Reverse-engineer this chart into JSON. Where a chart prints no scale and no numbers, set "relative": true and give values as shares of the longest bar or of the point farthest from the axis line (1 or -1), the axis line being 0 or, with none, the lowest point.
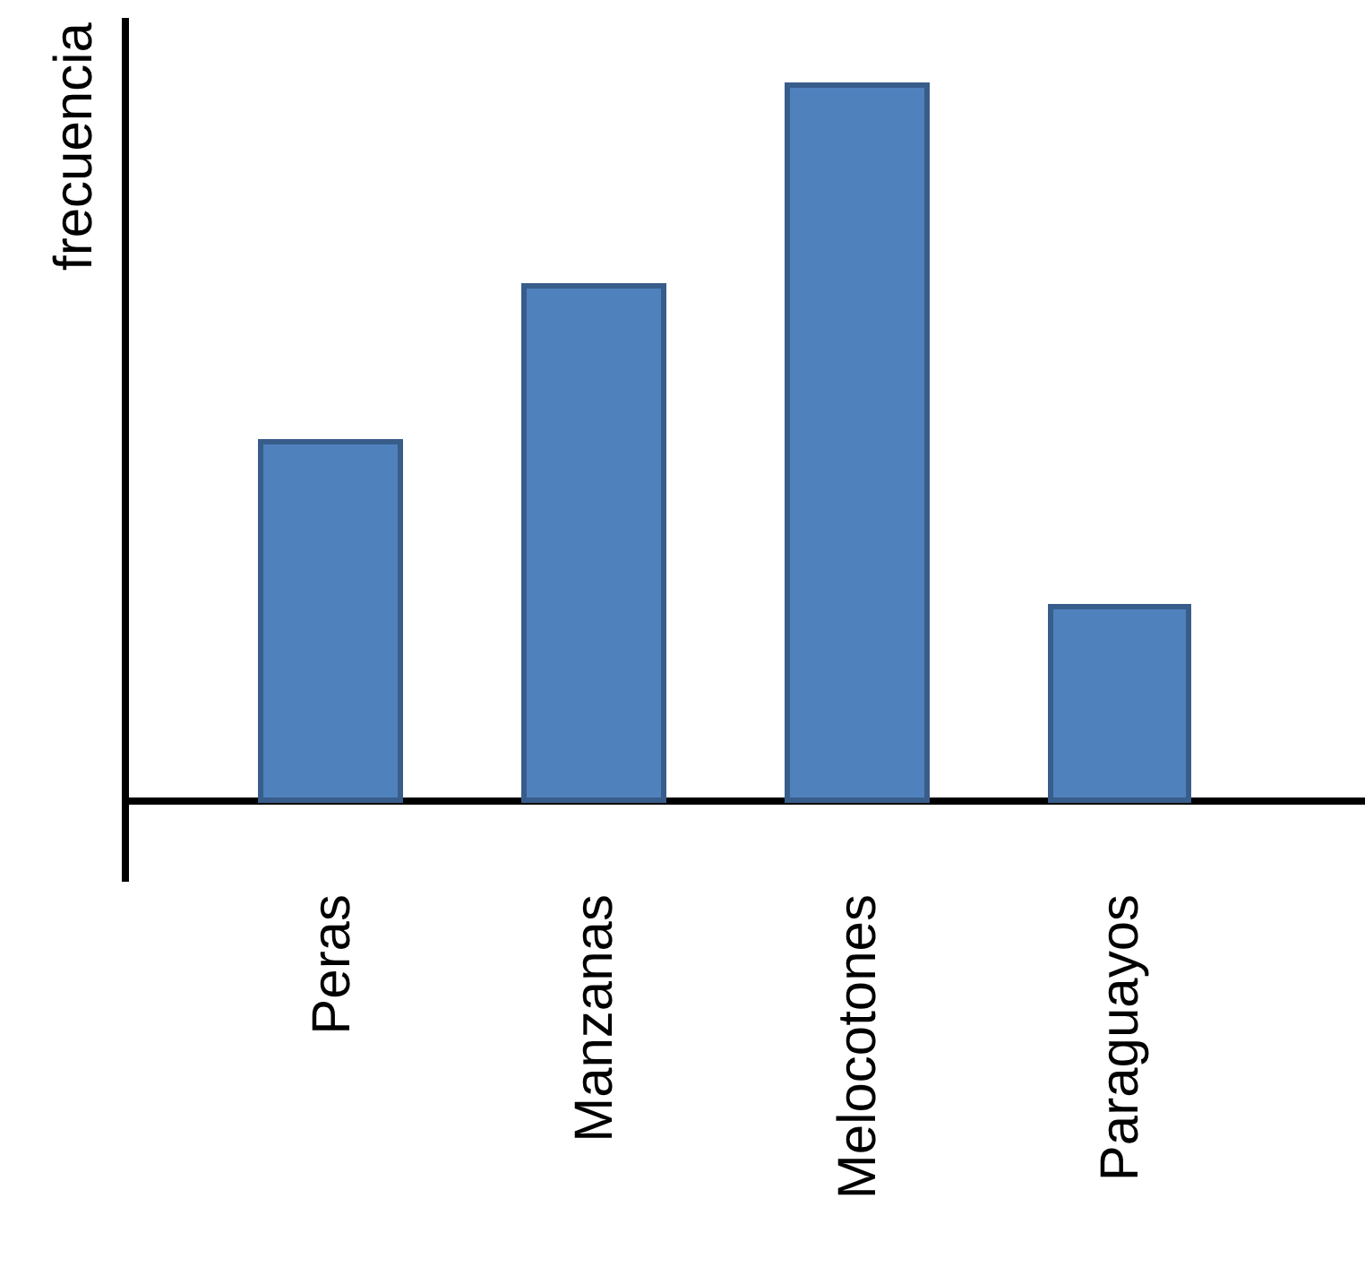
{
  "chart_data": {
    "type": "bar",
    "relative": true,
    "ylabel": "frecuencia",
    "categories": [
      "Peras",
      "Manzanas",
      "Melocotones",
      "Paraguayos"
    ],
    "values": [
      0.5,
      0.72,
      1,
      0.27
    ],
    "color": "#4f81bd"
  }
}
